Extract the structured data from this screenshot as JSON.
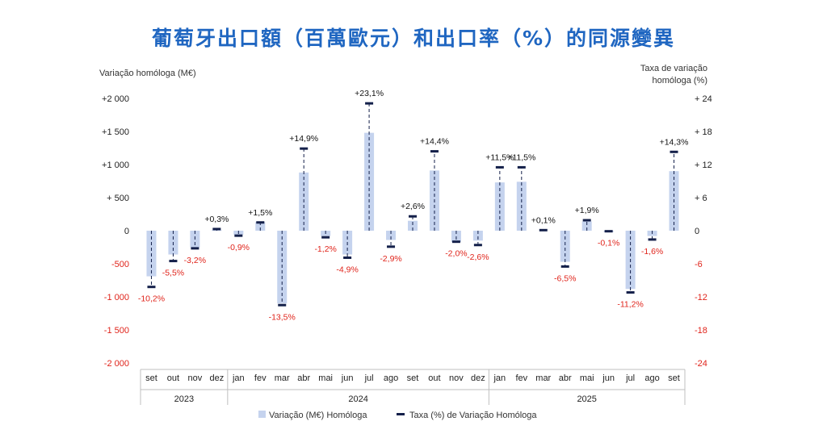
{
  "title": "葡萄牙出口額（百萬歐元）和出口率（%）的同源變異",
  "chart_data": {
    "type": "bar",
    "title": "葡萄牙出口額（百萬歐元）和出口率（%）的同源變異",
    "ylabel_left": "Variação homóloga (M€)",
    "ylabel_right": "Taxa de variação homóloga (%)",
    "ylim_left": [
      -2000,
      2000
    ],
    "ylim_right": [
      -24,
      24
    ],
    "yticks_left": [
      "+2 000",
      "+1 500",
      "+1 000",
      "+ 500",
      "0",
      "-500",
      "-1 000",
      "-1 500",
      "-2 000"
    ],
    "yticks_right": [
      "+ 24",
      "+ 18",
      "+ 12",
      "+ 6",
      "0",
      "-6",
      "-12",
      "-18",
      "-24"
    ],
    "categories": [
      "set",
      "out",
      "nov",
      "dez",
      "jan",
      "fev",
      "mar",
      "abr",
      "mai",
      "jun",
      "jul",
      "ago",
      "set",
      "out",
      "nov",
      "dez",
      "jan",
      "fev",
      "mar",
      "abr",
      "mai",
      "jun",
      "jul",
      "ago",
      "set"
    ],
    "year_groups": [
      {
        "label": "2023",
        "count": 4
      },
      {
        "label": "2024",
        "count": 12
      },
      {
        "label": "2025",
        "count": 9
      }
    ],
    "series": [
      {
        "name": "Variação (M€) Homóloga",
        "axis": "left",
        "kind": "bar",
        "values": [
          -690,
          -360,
          -250,
          10,
          -60,
          130,
          -1100,
          880,
          -80,
          -360,
          1480,
          -140,
          150,
          910,
          -170,
          -150,
          730,
          740,
          0,
          -470,
          140,
          -20,
          -880,
          -80,
          900
        ]
      },
      {
        "name": "Taxa (%) de Variação Homóloga",
        "axis": "right",
        "kind": "marker",
        "values": [
          -10.2,
          -5.5,
          -3.2,
          0.3,
          -0.9,
          1.5,
          -13.5,
          14.9,
          -1.2,
          -4.9,
          23.1,
          -2.9,
          2.6,
          14.4,
          -2.0,
          -2.6,
          11.5,
          11.5,
          0.1,
          -6.5,
          1.9,
          -0.1,
          -11.2,
          -1.6,
          14.3
        ],
        "labels": [
          "-10,2%",
          "-5,5%",
          "-3,2%",
          "+0,3%",
          "-0,9%",
          "+1,5%",
          "-13,5%",
          "+14,9%",
          "-1,2%",
          "-4,9%",
          "+23,1%",
          "-2,9%",
          "+2,6%",
          "+14,4%",
          "-2,0%",
          "-2,6%",
          "+11,5%",
          "+11,5%",
          "+0,1%",
          "-6,5%",
          "+1,9%",
          "-0,1%",
          "-11,2%",
          "-1,6%",
          "+14,3%"
        ]
      }
    ],
    "legend": [
      "Variação (M€) Homóloga",
      "Taxa (%) de Variação Homóloga"
    ],
    "colors": {
      "bar": "#c5d3ee",
      "marker": "#14204a",
      "negative_text": "#e0241b",
      "title": "#1f66c1"
    }
  }
}
